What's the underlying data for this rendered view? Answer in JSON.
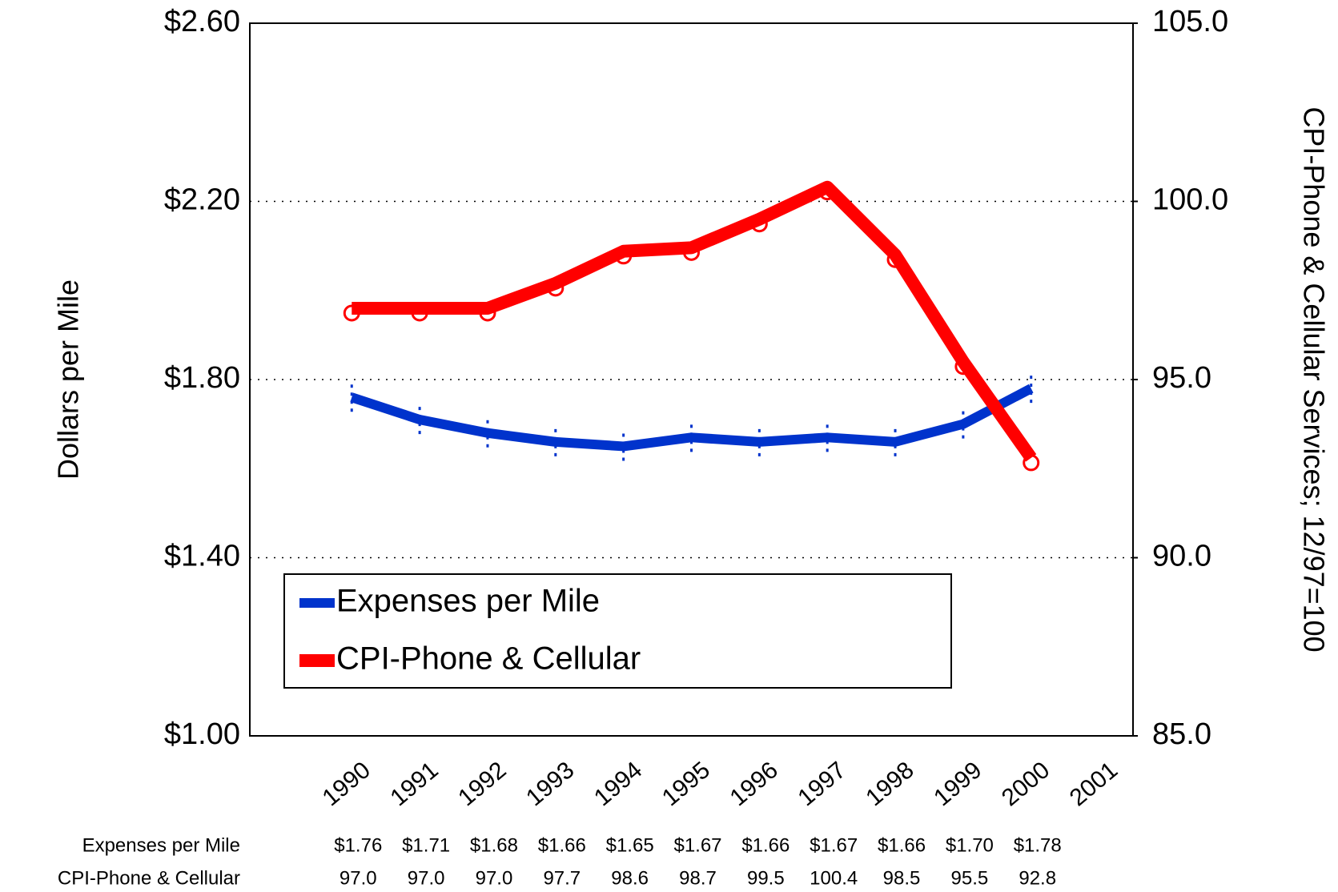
{
  "chart_data": {
    "type": "line",
    "ylabel": "Dollars per Mile",
    "y2label": "CPI-Phone & Cellular Services; 12/97=100",
    "categories": [
      "1990",
      "1991",
      "1992",
      "1993",
      "1994",
      "1995",
      "1996",
      "1997",
      "1998",
      "1999",
      "2000",
      "2001"
    ],
    "series": [
      {
        "name": "Expenses per Mile",
        "color": "#0033cc",
        "values": [
          1.76,
          1.71,
          1.68,
          1.66,
          1.65,
          1.67,
          1.66,
          1.67,
          1.66,
          1.7,
          1.78,
          null
        ],
        "value_labels": [
          "$1.76",
          "$1.71",
          "$1.68",
          "$1.66",
          "$1.65",
          "$1.67",
          "$1.66",
          "$1.67",
          "$1.66",
          "$1.70",
          "$1.78",
          null
        ]
      },
      {
        "name": "CPI-Phone & Cellular",
        "color": "#ff0000",
        "axis": "y2",
        "values": [
          97.0,
          97.0,
          97.0,
          97.7,
          98.6,
          98.7,
          99.5,
          100.4,
          98.5,
          95.5,
          92.8,
          null
        ],
        "value_labels": [
          "97.0",
          "97.0",
          "97.0",
          "97.7",
          "98.6",
          "98.7",
          "99.5",
          "100.4",
          "98.5",
          "95.5",
          "92.8",
          null
        ]
      }
    ],
    "ylim": [
      1.0,
      2.6
    ],
    "yticks": [
      {
        "value": 1.0,
        "label": "$1.00"
      },
      {
        "value": 1.4,
        "label": "$1.40"
      },
      {
        "value": 1.8,
        "label": "$1.80"
      },
      {
        "value": 2.2,
        "label": "$2.20"
      },
      {
        "value": 2.6,
        "label": "$2.60"
      }
    ],
    "y2lim": [
      85,
      105
    ],
    "y2ticks": [
      {
        "value": 85,
        "label": "85.0"
      },
      {
        "value": 90,
        "label": "90.0"
      },
      {
        "value": 95,
        "label": "95.0"
      },
      {
        "value": 100,
        "label": "100.0"
      },
      {
        "value": 105,
        "label": "105.0"
      }
    ],
    "grid": true,
    "legend": "lower left"
  }
}
